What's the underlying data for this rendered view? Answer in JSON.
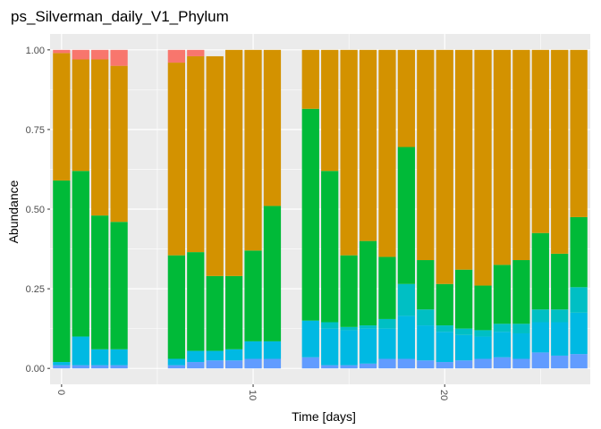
{
  "chart_data": {
    "type": "bar",
    "stacked": true,
    "title": "ps_Silverman_daily_V1_Phylum",
    "xlabel": "Time [days]",
    "ylabel": "Abundance",
    "xlim": [
      -0.6,
      27.6
    ],
    "ylim": [
      -0.05,
      1.05
    ],
    "xticks": [
      0,
      10,
      20
    ],
    "yticks": [
      0.0,
      0.25,
      0.5,
      0.75,
      1.0
    ],
    "ytick_labels": [
      "0.00",
      "0.25",
      "0.50",
      "0.75",
      "1.00"
    ],
    "xtick_labels": [
      "0",
      "10",
      "20"
    ],
    "grid": true,
    "background": "#ebebeb",
    "legend": "none",
    "x": [
      0,
      1,
      2,
      3,
      6,
      7,
      8,
      9,
      10,
      11,
      13,
      14,
      15,
      16,
      17,
      18,
      19,
      20,
      21,
      22,
      23,
      24,
      25,
      26,
      27
    ],
    "series": [
      {
        "color": "#619cff",
        "values": [
          0.01,
          0.01,
          0.01,
          0.01,
          0.01,
          0.02,
          0.025,
          0.025,
          0.03,
          0.03,
          0.035,
          0.01,
          0.01,
          0.015,
          0.03,
          0.03,
          0.025,
          0.02,
          0.025,
          0.03,
          0.035,
          0.03,
          0.05,
          0.04,
          0.045
        ]
      },
      {
        "color": "#00b9e3",
        "values": [
          0.01,
          0.09,
          0.05,
          0.05,
          0.02,
          0.035,
          0.03,
          0.035,
          0.055,
          0.055,
          0.115,
          0.115,
          0.11,
          0.11,
          0.095,
          0.135,
          0.11,
          0.095,
          0.08,
          0.07,
          0.08,
          0.08,
          0.095,
          0.105,
          0.13
        ]
      },
      {
        "color": "#00bfc4",
        "values": [
          0.0,
          0.0,
          0.0,
          0.0,
          0.0,
          0.0,
          0.0,
          0.0,
          0.0,
          0.0,
          0.0,
          0.02,
          0.01,
          0.01,
          0.03,
          0.1,
          0.05,
          0.02,
          0.02,
          0.02,
          0.025,
          0.03,
          0.04,
          0.04,
          0.08
        ]
      },
      {
        "color": "#00ba38",
        "values": [
          0.57,
          0.52,
          0.42,
          0.4,
          0.325,
          0.31,
          0.235,
          0.23,
          0.285,
          0.425,
          0.665,
          0.475,
          0.225,
          0.265,
          0.195,
          0.43,
          0.155,
          0.13,
          0.185,
          0.14,
          0.185,
          0.2,
          0.24,
          0.175,
          0.22
        ]
      },
      {
        "color": "#d39200",
        "values": [
          0.4,
          0.35,
          0.49,
          0.49,
          0.605,
          0.615,
          0.69,
          0.71,
          0.63,
          0.49,
          0.185,
          0.38,
          0.645,
          0.6,
          0.65,
          0.305,
          0.66,
          0.735,
          0.69,
          0.74,
          0.675,
          0.66,
          0.575,
          0.64,
          0.525
        ]
      },
      {
        "color": "#f8766d",
        "values": [
          0.01,
          0.03,
          0.03,
          0.05,
          0.04,
          0.02,
          0.0,
          0.0,
          0.0,
          0.0,
          0.0,
          0.0,
          0.0,
          0.0,
          0.0,
          0.0,
          0.0,
          0.0,
          0.0,
          0.0,
          0.0,
          0.0,
          0.0,
          0.0,
          0.0
        ]
      }
    ]
  }
}
